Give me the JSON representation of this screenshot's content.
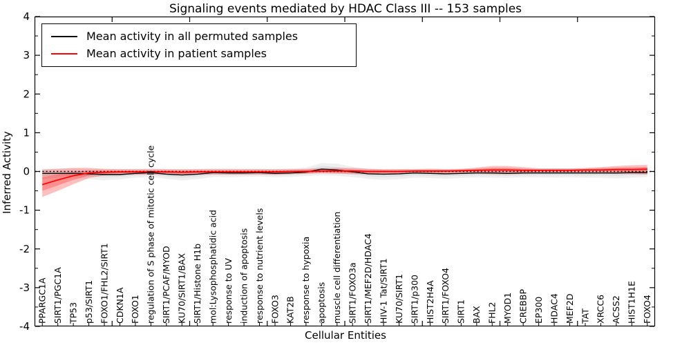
{
  "title": "Signaling events mediated by HDAC Class III -- 153 samples",
  "legend": {
    "entries": [
      {
        "label": "Mean activity in all permuted samples",
        "color": "#000000"
      },
      {
        "label": "Mean activity in patient samples",
        "color": "#ff0000"
      }
    ],
    "position": "upper left"
  },
  "chart_data": {
    "type": "line",
    "title": "Signaling events mediated by HDAC Class III -- 153 samples",
    "xlabel": "Cellular Entities",
    "ylabel": "Inferred Activity",
    "ylim": [
      -4,
      4
    ],
    "yticks": [
      4,
      3,
      2,
      1,
      0,
      -1,
      -2,
      -3,
      -4
    ],
    "x_major_ticks": [
      5,
      10,
      15,
      20,
      25,
      30,
      35
    ],
    "grid": false,
    "zero_line": true,
    "legend_position": "upper left",
    "categories": [
      "PPARGC1A",
      "SIRT1/PGC1A",
      "TP53",
      "p53/SIRT1",
      "FOXO1/FHL2/SIRT1",
      "CDKN1A",
      "FOXO1",
      "regulation of S phase of mitotic cell cycle",
      "SIRT1/PCAF/MYOD",
      "KU70/SIRT1/BAX",
      "SIRT1/Histone H1b",
      "mol:Lysophosphatidic acid",
      "response to UV",
      "induction of apoptosis",
      "response to nutrient levels",
      "FOXO3",
      "KAT2B",
      "response to hypoxia",
      "apoptosis",
      "muscle cell differentiation",
      "SIRT1/FOXO3a",
      "SIRT1/MEF2D/HDAC4",
      "HIV-1 Tat/SIRT1",
      "KU70/SIRT1",
      "SIRT1/p300",
      "HIST2H4A",
      "SIRT1/FOXO4",
      "SIRT1",
      "BAX",
      "FHL2",
      "MYOD1",
      "CREBBP",
      "EP300",
      "HDAC4",
      "MEF2D",
      "TAT",
      "XRCC6",
      "ACSS2",
      "HIST1H1E",
      "FOXO4"
    ],
    "series": [
      {
        "name": "Mean activity in all permuted samples",
        "color": "#000000",
        "band_color": "#808080",
        "values": [
          -0.05,
          -0.05,
          -0.05,
          -0.06,
          -0.08,
          -0.08,
          -0.05,
          -0.03,
          -0.07,
          -0.09,
          -0.07,
          -0.03,
          -0.04,
          -0.04,
          -0.03,
          -0.05,
          -0.04,
          -0.02,
          0.06,
          0.04,
          -0.01,
          -0.06,
          -0.07,
          -0.06,
          -0.04,
          -0.05,
          -0.06,
          -0.05,
          -0.04,
          -0.04,
          -0.05,
          -0.04,
          -0.04,
          -0.04,
          -0.04,
          -0.04,
          -0.04,
          -0.04,
          -0.03,
          -0.03
        ],
        "upper": [
          0.07,
          0.07,
          0.08,
          0.07,
          0.06,
          0.06,
          0.07,
          0.08,
          0.06,
          0.05,
          0.06,
          0.08,
          0.08,
          0.07,
          0.07,
          0.06,
          0.08,
          0.1,
          0.22,
          0.2,
          0.12,
          0.07,
          0.05,
          0.06,
          0.07,
          0.07,
          0.06,
          0.06,
          0.08,
          0.09,
          0.08,
          0.08,
          0.08,
          0.08,
          0.08,
          0.08,
          0.09,
          0.1,
          0.09,
          0.08
        ],
        "lower": [
          -0.2,
          -0.16,
          -0.17,
          -0.2,
          -0.23,
          -0.2,
          -0.16,
          -0.14,
          -0.19,
          -0.23,
          -0.2,
          -0.14,
          -0.15,
          -0.14,
          -0.13,
          -0.15,
          -0.14,
          -0.12,
          -0.1,
          -0.11,
          -0.14,
          -0.19,
          -0.22,
          -0.2,
          -0.16,
          -0.17,
          -0.19,
          -0.17,
          -0.15,
          -0.16,
          -0.17,
          -0.15,
          -0.15,
          -0.16,
          -0.15,
          -0.16,
          -0.16,
          -0.18,
          -0.16,
          -0.14
        ]
      },
      {
        "name": "Mean activity in patient samples",
        "color": "#ff0000",
        "band_color": "#ff0000",
        "values": [
          -0.34,
          -0.22,
          -0.11,
          -0.04,
          -0.02,
          -0.01,
          -0.01,
          -0.01,
          -0.01,
          -0.02,
          -0.01,
          -0.01,
          -0.01,
          -0.01,
          -0.01,
          -0.01,
          0.0,
          0.0,
          0.01,
          0.01,
          0.01,
          0.0,
          0.0,
          0.0,
          0.01,
          0.01,
          0.01,
          0.02,
          0.03,
          0.04,
          0.04,
          0.03,
          0.03,
          0.03,
          0.03,
          0.04,
          0.04,
          0.05,
          0.05,
          0.06
        ],
        "upper": [
          0.05,
          0.07,
          0.09,
          0.09,
          0.07,
          0.06,
          0.06,
          0.06,
          0.06,
          0.06,
          0.06,
          0.06,
          0.06,
          0.06,
          0.06,
          0.06,
          0.06,
          0.07,
          0.08,
          0.09,
          0.09,
          0.07,
          0.06,
          0.06,
          0.06,
          0.07,
          0.06,
          0.07,
          0.1,
          0.14,
          0.14,
          0.11,
          0.08,
          0.08,
          0.08,
          0.09,
          0.11,
          0.14,
          0.16,
          0.17
        ],
        "lower": [
          -0.66,
          -0.5,
          -0.33,
          -0.17,
          -0.1,
          -0.08,
          -0.08,
          -0.08,
          -0.08,
          -0.09,
          -0.08,
          -0.08,
          -0.08,
          -0.08,
          -0.08,
          -0.08,
          -0.07,
          -0.06,
          -0.05,
          -0.06,
          -0.07,
          -0.07,
          -0.06,
          -0.06,
          -0.05,
          -0.05,
          -0.05,
          -0.04,
          -0.05,
          -0.07,
          -0.07,
          -0.06,
          -0.04,
          -0.04,
          -0.04,
          -0.04,
          -0.05,
          -0.06,
          -0.07,
          -0.08
        ]
      }
    ]
  }
}
